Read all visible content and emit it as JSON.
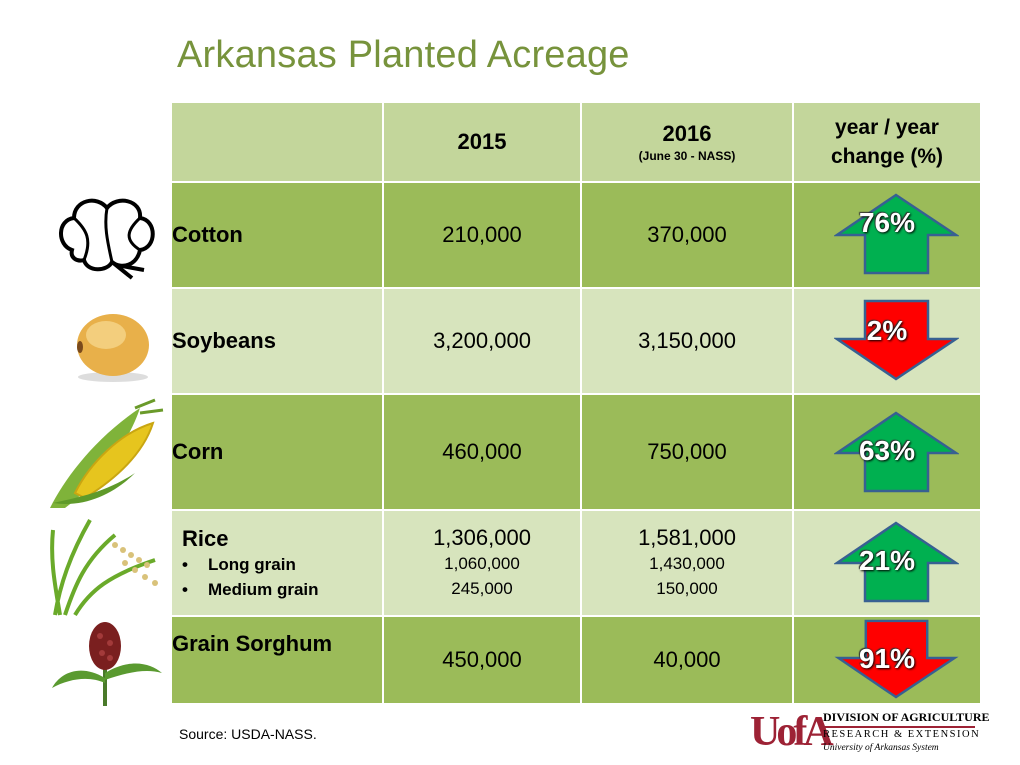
{
  "title": "Arkansas Planted Acreage",
  "header": {
    "col1": "2015",
    "col2": "2016",
    "col2_sub": "(June 30 - NASS)",
    "col3_line1": "year / year",
    "col3_line2": "change (%)"
  },
  "rows": [
    {
      "crop": "Cotton",
      "y2015": "210,000",
      "y2016": "370,000",
      "change": "76%",
      "direction": "up",
      "icon": "cotton-boll-icon"
    },
    {
      "crop": "Soybeans",
      "y2015": "3,200,000",
      "y2016": "3,150,000",
      "change": "2%",
      "direction": "down",
      "icon": "soybean-icon"
    },
    {
      "crop": "Corn",
      "y2015": "460,000",
      "y2016": "750,000",
      "change": "63%",
      "direction": "up",
      "icon": "corn-icon"
    },
    {
      "crop": "Rice",
      "y2015": "1,306,000",
      "y2016": "1,581,000",
      "change": "21%",
      "direction": "up",
      "icon": "rice-icon",
      "sub": [
        {
          "bullet": "•",
          "label": "Long grain",
          "y2015": "1,060,000",
          "y2016": "1,430,000"
        },
        {
          "bullet": "•",
          "label": "Medium grain",
          "y2015": "245,000",
          "y2016": "150,000"
        }
      ]
    },
    {
      "crop": "Grain Sorghum",
      "y2015": "450,000",
      "y2016": "40,000",
      "change": "91%",
      "direction": "down",
      "icon": "sorghum-icon"
    }
  ],
  "colors": {
    "up_arrow": "#00b050",
    "down_arrow": "#ff0000",
    "dark_row": "#9bbb59",
    "light_row": "#d7e4bd",
    "header_row": "#c3d69b",
    "title": "#77933c"
  },
  "source": "Source: USDA-NASS.",
  "logo": {
    "mark": "UofA",
    "line1": "DIVISION OF AGRICULTURE",
    "line2": "RESEARCH & EXTENSION",
    "line3": "University of Arkansas System"
  }
}
